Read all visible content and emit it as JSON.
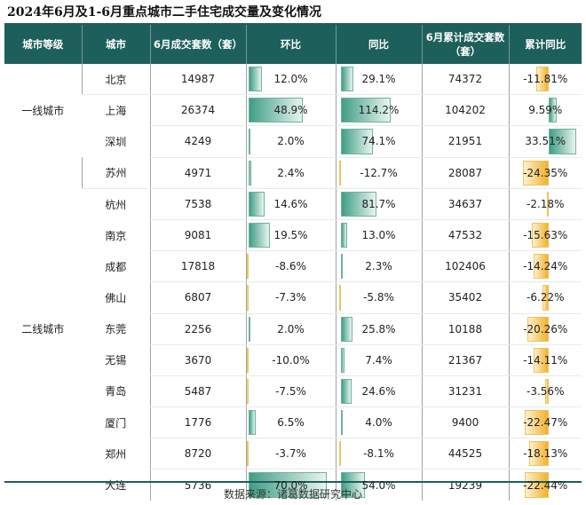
{
  "title": "2024年6月及1-6月重点城市二手住宅成交量及变化情况",
  "source": "数据来源：诸葛数据研究中心",
  "colors": {
    "header_bg": "#1d5f5b",
    "positive_bar": "#3f9e85",
    "negative_bar": "#f2b12c"
  },
  "chart_data": {
    "type": "table",
    "columns": [
      "城市等级",
      "城市",
      "6月成交套数（套）",
      "环比",
      "同比",
      "6月累计成交套数（套）",
      "累计同比"
    ],
    "tiers": [
      {
        "label": "一线城市",
        "rows": 3
      },
      {
        "label": "二线城市",
        "rows": 11
      }
    ],
    "rows": [
      {
        "city": "北京",
        "june_units": "14987",
        "mom": "12.0%",
        "yoy": "29.1%",
        "cum_units": "74372",
        "cum_yoy": "-11.81%"
      },
      {
        "city": "上海",
        "june_units": "26374",
        "mom": "48.9%",
        "yoy": "114.2%",
        "cum_units": "104202",
        "cum_yoy": "9.59%"
      },
      {
        "city": "深圳",
        "june_units": "4249",
        "mom": "2.0%",
        "yoy": "74.1%",
        "cum_units": "21951",
        "cum_yoy": "33.51%"
      },
      {
        "city": "苏州",
        "june_units": "4971",
        "mom": "2.4%",
        "yoy": "-12.7%",
        "cum_units": "28087",
        "cum_yoy": "-24.35%"
      },
      {
        "city": "杭州",
        "june_units": "7538",
        "mom": "14.6%",
        "yoy": "81.7%",
        "cum_units": "34637",
        "cum_yoy": "-2.18%"
      },
      {
        "city": "南京",
        "june_units": "9081",
        "mom": "19.5%",
        "yoy": "13.0%",
        "cum_units": "47532",
        "cum_yoy": "-15.63%"
      },
      {
        "city": "成都",
        "june_units": "17818",
        "mom": "-8.6%",
        "yoy": "2.3%",
        "cum_units": "102406",
        "cum_yoy": "-14.24%"
      },
      {
        "city": "佛山",
        "june_units": "6807",
        "mom": "-7.3%",
        "yoy": "-5.8%",
        "cum_units": "35402",
        "cum_yoy": "-6.22%"
      },
      {
        "city": "东莞",
        "june_units": "2256",
        "mom": "2.0%",
        "yoy": "25.8%",
        "cum_units": "10188",
        "cum_yoy": "-20.26%"
      },
      {
        "city": "无锡",
        "june_units": "3670",
        "mom": "-10.0%",
        "yoy": "7.4%",
        "cum_units": "21367",
        "cum_yoy": "-14.11%"
      },
      {
        "city": "青岛",
        "june_units": "5487",
        "mom": "-7.5%",
        "yoy": "24.6%",
        "cum_units": "31231",
        "cum_yoy": "-3.56%"
      },
      {
        "city": "厦门",
        "june_units": "1776",
        "mom": "6.5%",
        "yoy": "4.0%",
        "cum_units": "9400",
        "cum_yoy": "-22.47%"
      },
      {
        "city": "郑州",
        "june_units": "8720",
        "mom": "-3.7%",
        "yoy": "-8.1%",
        "cum_units": "44525",
        "cum_yoy": "-18.13%"
      },
      {
        "city": "大连",
        "june_units": "5736",
        "mom": "70.0%",
        "yoy": "54.0%",
        "cum_units": "19239",
        "cum_yoy": "-22.44%"
      }
    ]
  }
}
